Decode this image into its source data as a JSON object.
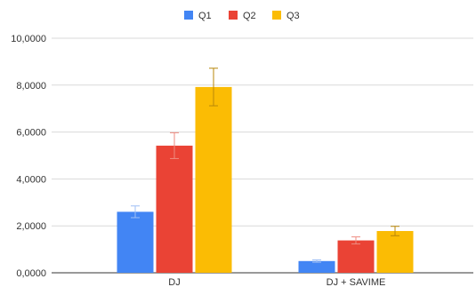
{
  "chart_data": {
    "type": "bar",
    "categories": [
      "DJ",
      "DJ + SAVIME"
    ],
    "series": [
      {
        "name": "Q1",
        "color": "#4285F4",
        "values": [
          2.6,
          0.5
        ],
        "error": [
          0.25,
          0.05
        ]
      },
      {
        "name": "Q2",
        "color": "#EA4335",
        "values": [
          5.42,
          1.38
        ],
        "error": [
          0.55,
          0.15
        ]
      },
      {
        "name": "Q3",
        "color": "#FBBC04",
        "values": [
          7.92,
          1.78
        ],
        "error": [
          0.8,
          0.2
        ]
      }
    ],
    "y_ticks": [
      "0,0000",
      "2,0000",
      "4,0000",
      "6,0000",
      "8,0000",
      "10,0000"
    ],
    "ylim": [
      0,
      10
    ],
    "legend_position": "top-center",
    "grid": "horizontal"
  }
}
